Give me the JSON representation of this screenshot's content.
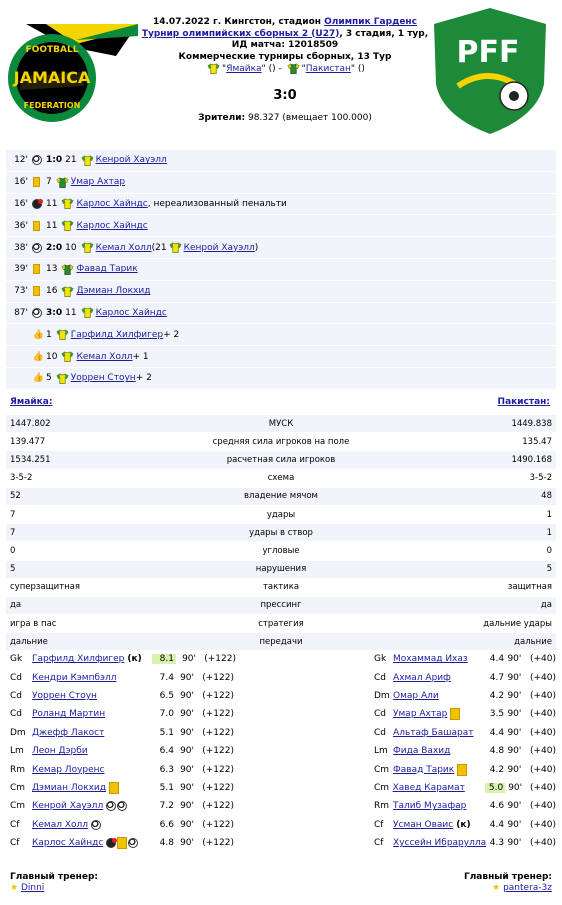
{
  "match": {
    "date_place": "14.07.2022 г. Кингстон, стадион",
    "stadium": "Олимпик Гарденс",
    "tournament": "Турнир олимпийских сборных 2 (U27)",
    "stage": ", 3 стадия, 1 тур,",
    "match_id": "ИД матча: 12018509",
    "commercial": "Коммерческие турниры сборных, 13 Тур",
    "home": "Ямайка",
    "away": "Пакистан",
    "home_paren": "()",
    "away_paren": "()",
    "dash": "-",
    "score": "3:0",
    "viewers_label": "Зрители:",
    "viewers_value": "98.327 (вмещает 100.000)"
  },
  "logos": {
    "left_top": "FOOTBALL",
    "left_mid": "JAMAICA",
    "left_bottom": "FEDERATION",
    "right": "PFF"
  },
  "events": [
    {
      "min": "12'",
      "icon": "ball",
      "score": "1:0",
      "num": "21",
      "shirt": "home",
      "name": "Кенрой Хауэлл",
      "extra": ""
    },
    {
      "min": "16'",
      "icon": "ycard",
      "num": "7",
      "shirt": "away",
      "name": "Умар Ахтар",
      "extra": ""
    },
    {
      "min": "16'",
      "icon": "miss",
      "num": "11",
      "shirt": "home",
      "name": "Карлос Хайндс",
      "extra": ", нереализованный пенальти"
    },
    {
      "min": "36'",
      "icon": "ycard",
      "num": "11",
      "shirt": "home",
      "name": "Карлос Хайндс",
      "extra": ""
    },
    {
      "min": "38'",
      "icon": "ball",
      "score": "2:0",
      "num": "10",
      "shirt": "home",
      "name": "Кемал Холл",
      "extra": " (21",
      "assist_name": "Кенрой Хауэлл",
      "assist_close": ")"
    },
    {
      "min": "39'",
      "icon": "ycard",
      "num": "13",
      "shirt": "away",
      "name": "Фавад Тарик",
      "extra": ""
    },
    {
      "min": "73'",
      "icon": "ycard",
      "num": "16",
      "shirt": "home",
      "name": "Дэмиан Локхид",
      "extra": ""
    },
    {
      "min": "87'",
      "icon": "ball",
      "score": "3:0",
      "num": "11",
      "shirt": "home",
      "name": "Карлос Хайндс",
      "extra": ""
    },
    {
      "min": "",
      "icon": "like",
      "num": "1",
      "shirt": "home",
      "name": "Гарфилд Хилфигер",
      "extra": " + 2"
    },
    {
      "min": "",
      "icon": "like",
      "num": "10",
      "shirt": "home",
      "name": "Кемал Холл",
      "extra": " + 1"
    },
    {
      "min": "",
      "icon": "like",
      "num": "5",
      "shirt": "home",
      "name": "Уоррен Стоун",
      "extra": " + 2"
    }
  ],
  "teams_row": {
    "home": "Ямайка:",
    "away": "Пакистан:"
  },
  "stats": [
    {
      "l": "1447.802",
      "c": "МУСК",
      "r": "1449.838"
    },
    {
      "l": "139.477",
      "c": "средняя сила игроков на поле",
      "r": "135.47"
    },
    {
      "l": "1534.251",
      "c": "расчетная сила игроков",
      "r": "1490.168"
    },
    {
      "l": "3-5-2",
      "c": "схема",
      "r": "3-5-2"
    },
    {
      "l": "52",
      "c": "владение мячом",
      "r": "48"
    },
    {
      "l": "7",
      "c": "удары",
      "r": "1"
    },
    {
      "l": "7",
      "c": "удары в створ",
      "r": "1"
    },
    {
      "l": "0",
      "c": "угловые",
      "r": "0"
    },
    {
      "l": "5",
      "c": "нарушения",
      "r": "5"
    },
    {
      "l": "суперзащитная",
      "c": "тактика",
      "r": "защитная"
    },
    {
      "l": "да",
      "c": "прессинг",
      "r": "да"
    },
    {
      "l": "игра в пас",
      "c": "стратегия",
      "r": "дальние удары"
    },
    {
      "l": "дальние",
      "c": "передачи",
      "r": "дальние"
    }
  ],
  "home_lineup": [
    {
      "pos": "Gk",
      "name": "Гарфилд Хилфигер",
      "capt": "(к)",
      "marks": [],
      "rating": "8.1",
      "hl": true,
      "min": "90'",
      "plus": "(+122)"
    },
    {
      "pos": "Cd",
      "name": "Кендри Кэмпбэлл",
      "capt": "",
      "marks": [],
      "rating": "7.4",
      "hl": false,
      "min": "90'",
      "plus": "(+122)"
    },
    {
      "pos": "Cd",
      "name": "Уоррен Стоун",
      "capt": "",
      "marks": [],
      "rating": "6.5",
      "hl": false,
      "min": "90'",
      "plus": "(+122)"
    },
    {
      "pos": "Cd",
      "name": "Роланд Мартин",
      "capt": "",
      "marks": [],
      "rating": "7.0",
      "hl": false,
      "min": "90'",
      "plus": "(+122)"
    },
    {
      "pos": "Dm",
      "name": "Джефф Лакост",
      "capt": "",
      "marks": [],
      "rating": "5.1",
      "hl": false,
      "min": "90'",
      "plus": "(+122)"
    },
    {
      "pos": "Lm",
      "name": "Леон Дэрби",
      "capt": "",
      "marks": [],
      "rating": "6.4",
      "hl": false,
      "min": "90'",
      "plus": "(+122)"
    },
    {
      "pos": "Rm",
      "name": "Кемар Лоуренс",
      "capt": "",
      "marks": [],
      "rating": "6.3",
      "hl": false,
      "min": "90'",
      "plus": "(+122)"
    },
    {
      "pos": "Cm",
      "name": "Дэмиан Локхид",
      "capt": "",
      "marks": [
        "ycard"
      ],
      "rating": "5.1",
      "hl": false,
      "min": "90'",
      "plus": "(+122)"
    },
    {
      "pos": "Cm",
      "name": "Кенрой Хауэлл",
      "capt": "",
      "marks": [
        "ball",
        "ball"
      ],
      "rating": "7.2",
      "hl": false,
      "min": "90'",
      "plus": "(+122)"
    },
    {
      "pos": "Cf",
      "name": "Кемал Холл",
      "capt": "",
      "marks": [
        "ball"
      ],
      "rating": "6.6",
      "hl": false,
      "min": "90'",
      "plus": "(+122)"
    },
    {
      "pos": "Cf",
      "name": "Карлос Хайндс",
      "capt": "",
      "marks": [
        "miss",
        "ycard",
        "ball"
      ],
      "rating": "4.8",
      "hl": false,
      "min": "90'",
      "plus": "(+122)"
    }
  ],
  "away_lineup": [
    {
      "pos": "Gk",
      "name": "Мохаммад Ихаз",
      "capt": "",
      "marks": [],
      "rating": "4.4",
      "hl": false,
      "min": "90'",
      "plus": "(+40)"
    },
    {
      "pos": "Cd",
      "name": "Ахмал Ариф",
      "capt": "",
      "marks": [],
      "rating": "4.7",
      "hl": false,
      "min": "90'",
      "plus": "(+40)"
    },
    {
      "pos": "Dm",
      "name": "Омар Али",
      "capt": "",
      "marks": [],
      "rating": "4.2",
      "hl": false,
      "min": "90'",
      "plus": "(+40)"
    },
    {
      "pos": "Cd",
      "name": "Умар Ахтар",
      "capt": "",
      "marks": [
        "ycard"
      ],
      "rating": "3.5",
      "hl": false,
      "min": "90'",
      "plus": "(+40)"
    },
    {
      "pos": "Cd",
      "name": "Альтаф Башарат",
      "capt": "",
      "marks": [],
      "rating": "4.4",
      "hl": false,
      "min": "90'",
      "plus": "(+40)"
    },
    {
      "pos": "Lm",
      "name": "Фида Вахид",
      "capt": "",
      "marks": [],
      "rating": "4.8",
      "hl": false,
      "min": "90'",
      "plus": "(+40)"
    },
    {
      "pos": "Cm",
      "name": "Фавад Тарик",
      "capt": "",
      "marks": [
        "ycard"
      ],
      "rating": "4.2",
      "hl": false,
      "min": "90'",
      "plus": "(+40)"
    },
    {
      "pos": "Cm",
      "name": "Хавед Карамат",
      "capt": "",
      "marks": [],
      "rating": "5.0",
      "hl": true,
      "min": "90'",
      "plus": "(+40)"
    },
    {
      "pos": "Rm",
      "name": "Талиб Музафар",
      "capt": "",
      "marks": [],
      "rating": "4.6",
      "hl": false,
      "min": "90'",
      "plus": "(+40)"
    },
    {
      "pos": "Cf",
      "name": "Усман Оваис",
      "capt": "(к)",
      "marks": [],
      "rating": "4.4",
      "hl": false,
      "min": "90'",
      "plus": "(+40)"
    },
    {
      "pos": "Cf",
      "name": "Хуссейн Ибрарулла",
      "capt": "",
      "marks": [],
      "rating": "4.3",
      "hl": false,
      "min": "90'",
      "plus": "(+40)"
    }
  ],
  "coaches": {
    "label": "Главный тренер:",
    "home": "Dinni",
    "away": "pantera-3z"
  },
  "colors": {
    "link": "#1d1d9e",
    "row_bg": "#f1f4fb",
    "rating_hl": "#d9f2b0",
    "jamaica_green": "#0a8a3a",
    "jamaica_yellow": "#f5d400",
    "pff_green": "#1d8a3a"
  },
  "icons": {
    "home_shirt": "yellow-shirt-icon",
    "away_shirt": "green-shirt-icon",
    "goal": "ball-icon",
    "yellow": "yellow-card-icon",
    "miss": "missed-penalty-icon",
    "like": "thumb-icon",
    "coach": "star-icon"
  }
}
